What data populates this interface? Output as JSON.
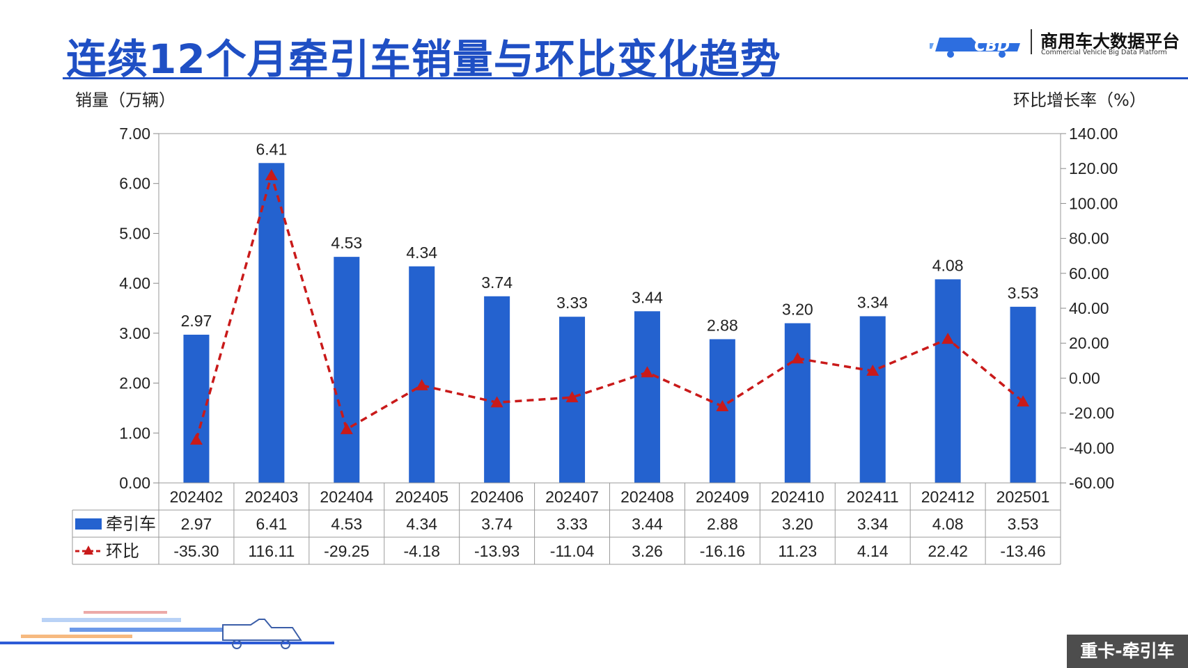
{
  "header": {
    "title": "连续12个月牵引车销量与环比变化趋势",
    "logo_cn": "商用车大数据平台",
    "logo_en": "Commercial Vehicle Big Data Platform"
  },
  "footer": {
    "tag": "重卡-牵引车"
  },
  "colors": {
    "accent": "#1f4fc4",
    "bar": "#2462cf",
    "line": "#c91a1a"
  },
  "chart_data": {
    "type": "bar",
    "title": "连续12个月牵引车销量与环比变化趋势",
    "ylabel": "销量（万辆）",
    "y2label": "环比增长率（%）",
    "ylim": [
      0,
      7
    ],
    "y2lim": [
      -60,
      140
    ],
    "yticks": [
      "0.00",
      "1.00",
      "2.00",
      "3.00",
      "4.00",
      "5.00",
      "6.00",
      "7.00"
    ],
    "y2ticks": [
      "-60.00",
      "-40.00",
      "-20.00",
      "0.00",
      "20.00",
      "40.00",
      "60.00",
      "80.00",
      "100.00",
      "120.00",
      "140.00"
    ],
    "categories": [
      "202402",
      "202403",
      "202404",
      "202405",
      "202406",
      "202407",
      "202408",
      "202409",
      "202410",
      "202411",
      "202412",
      "202501"
    ],
    "series": [
      {
        "name": "牵引车",
        "type": "bar",
        "axis": "left",
        "values": [
          2.97,
          6.41,
          4.53,
          4.34,
          3.74,
          3.33,
          3.44,
          2.88,
          3.2,
          3.34,
          4.08,
          3.53
        ],
        "labels": [
          "2.97",
          "6.41",
          "4.53",
          "4.34",
          "3.74",
          "3.33",
          "3.44",
          "2.88",
          "3.20",
          "3.34",
          "4.08",
          "3.53"
        ]
      },
      {
        "name": "环比",
        "type": "line",
        "axis": "right",
        "style": "dashed",
        "marker": "triangle",
        "values": [
          -35.3,
          116.11,
          -29.25,
          -4.18,
          -13.93,
          -11.04,
          3.26,
          -16.16,
          11.23,
          4.14,
          22.42,
          -13.46
        ],
        "labels": [
          "-35.30",
          "116.11",
          "-29.25",
          "-4.18",
          "-13.93",
          "-11.04",
          "3.26",
          "-16.16",
          "11.23",
          "4.14",
          "22.42",
          "-13.46"
        ]
      }
    ],
    "grid": false,
    "legend": "data-table"
  }
}
